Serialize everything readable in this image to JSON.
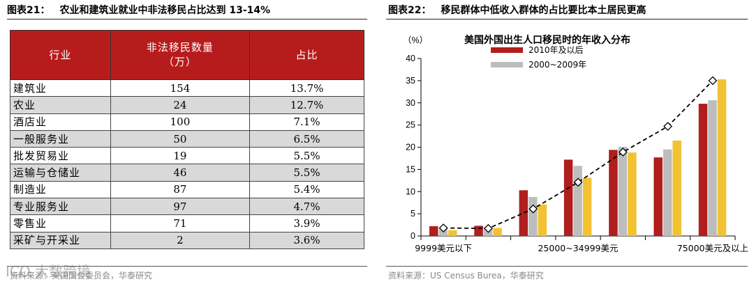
{
  "left": {
    "figure_label": "图表21：",
    "figure_title": "农业和建筑业就业中非法移民占比达到 13-14%",
    "table": {
      "headers": [
        "行业",
        "非法移民数量（万）",
        "占比"
      ],
      "header_lines": [
        [
          "行业"
        ],
        [
          "非法移民数量",
          "（万）"
        ],
        [
          "占比"
        ]
      ],
      "rows": [
        [
          "建筑业",
          "154",
          "13.7%"
        ],
        [
          "农业",
          "24",
          "12.7%"
        ],
        [
          "酒店业",
          "100",
          "7.1%"
        ],
        [
          "一般服务业",
          "50",
          "6.5%"
        ],
        [
          "批发贸易业",
          "19",
          "5.5%"
        ],
        [
          "运输与仓储业",
          "46",
          "5.5%"
        ],
        [
          "制造业",
          "87",
          "5.4%"
        ],
        [
          "专业服务业",
          "97",
          "4.7%"
        ],
        [
          "零售业",
          "71",
          "3.9%"
        ],
        [
          "采矿与开采业",
          "2",
          "3.6%"
        ]
      ]
    },
    "source": "资料来源：美国国会委员会，华泰研究",
    "watermark": "ICO 大数跨境"
  },
  "right": {
    "figure_label": "图表22：",
    "figure_title": "移民群体中低收入群体的占比要比本土居民更高",
    "source": "资料来源：US Census Burea，华泰研究"
  },
  "colors": {
    "header_red": "#b71c1c",
    "series_red": "#b01e1e",
    "series_gray": "#bdbdbd",
    "series_yellow": "#f2c232",
    "stripe_gray": "#d9d9d9"
  },
  "chart_data": {
    "type": "bar",
    "title": "美国外国出生人口移民时的年收入分布",
    "unit_label": "（%）",
    "ylim": [
      0,
      40
    ],
    "yticks": [
      0,
      5,
      10,
      15,
      20,
      25,
      30,
      35,
      40
    ],
    "grid": false,
    "legend_position": "top-left",
    "x_tick_labels": [
      "9999美元以下",
      "25000~34999美元",
      "75000美元及以上"
    ],
    "series": [
      {
        "name": "2010年及以后",
        "color": "#b01e1e",
        "values": [
          2.2,
          2.3,
          10.3,
          17.2,
          19.4,
          17.7,
          29.8
        ]
      },
      {
        "name": "2000~2009年",
        "color": "#bdbdbd",
        "values": [
          1.8,
          2.0,
          8.8,
          15.8,
          20.1,
          19.5,
          30.6
        ]
      },
      {
        "name": "",
        "color": "#f2c232",
        "values": [
          1.3,
          1.8,
          7.1,
          13.1,
          18.8,
          21.5,
          35.3
        ]
      }
    ],
    "trend_line": [
      1.8,
      1.7,
      6.1,
      12.1,
      18.9,
      24.7,
      35.0
    ]
  }
}
